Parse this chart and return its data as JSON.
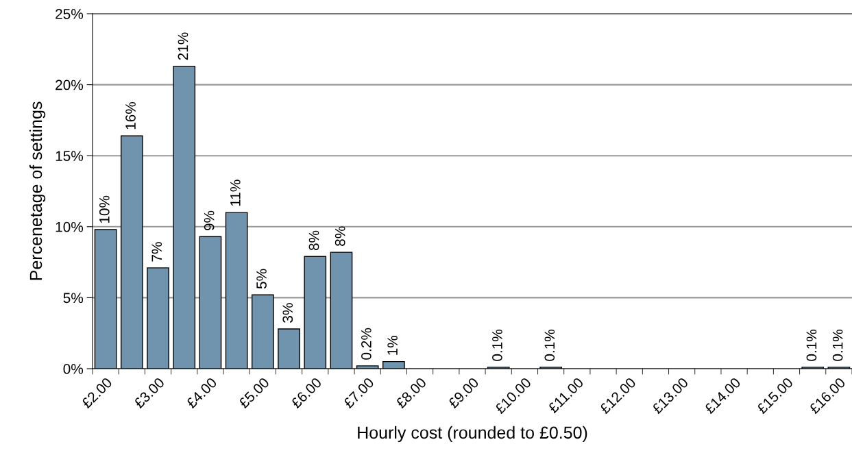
{
  "chart_data": {
    "type": "bar",
    "xlabel": "Hourly cost (rounded to £0.50)",
    "ylabel": "Percenetage of settings",
    "categories": [
      "£2.00",
      null,
      "£3.00",
      null,
      "£4.00",
      null,
      "£5.00",
      null,
      "£6.00",
      null,
      "£7.00",
      null,
      "£8.00",
      null,
      "£9.00",
      null,
      "£10.00",
      null,
      "£11.00",
      null,
      "£12.00",
      null,
      "£13.00",
      null,
      "£14.00",
      null,
      "£15.00",
      null,
      "£16.00"
    ],
    "values": [
      9.8,
      16.4,
      7.1,
      21.3,
      9.3,
      11.0,
      5.2,
      2.8,
      7.9,
      8.2,
      0.2,
      0.5,
      0,
      0,
      0,
      0.1,
      0,
      0.1,
      0,
      0,
      0,
      0,
      0,
      0,
      0,
      0,
      0,
      0.1,
      0.1
    ],
    "value_labels": [
      "10%",
      "16%",
      "7%",
      "21%",
      "9%",
      "11%",
      "5%",
      "3%",
      "8%",
      "8%",
      "0.2%",
      "1%",
      null,
      null,
      null,
      "0.1%",
      null,
      "0.1%",
      null,
      null,
      null,
      null,
      null,
      null,
      null,
      null,
      null,
      "0.1%",
      "0.1%"
    ],
    "color": "#7094ae",
    "ylim": [
      0,
      25
    ],
    "yticks": [
      {
        "value": 0,
        "label": "0%"
      },
      {
        "value": 5,
        "label": "5%"
      },
      {
        "value": 10,
        "label": "10%"
      },
      {
        "value": 15,
        "label": "15%"
      },
      {
        "value": 20,
        "label": "20%"
      },
      {
        "value": 25,
        "label": "25%"
      }
    ],
    "grid": "y",
    "legend": false
  }
}
